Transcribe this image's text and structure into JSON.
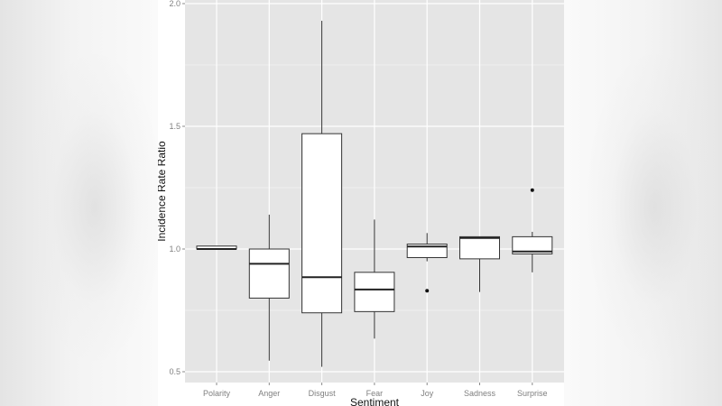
{
  "chart_data": {
    "type": "boxplot",
    "title": "",
    "xlabel": "Sentiment",
    "ylabel": "Incidence Rate Ratio",
    "ylim": [
      0.48,
      2.0
    ],
    "yticks": [
      0.5,
      1.0,
      1.5,
      2.0
    ],
    "ytick_labels": [
      "0.5",
      "1.0",
      "1.5",
      "2.0"
    ],
    "grid": true,
    "categories": [
      "Polarity",
      "Anger",
      "Disgust",
      "Fear",
      "Joy",
      "Sadness",
      "Surprise"
    ],
    "boxes": [
      {
        "name": "Polarity",
        "whisker_low": 1.0,
        "q1": 1.0,
        "median": 1.0,
        "q3": 1.012,
        "whisker_high": 1.012,
        "outliers": []
      },
      {
        "name": "Anger",
        "whisker_low": 0.545,
        "q1": 0.8,
        "median": 0.94,
        "q3": 1.0,
        "whisker_high": 1.14,
        "outliers": []
      },
      {
        "name": "Disgust",
        "whisker_low": 0.52,
        "q1": 0.74,
        "median": 0.885,
        "q3": 1.47,
        "whisker_high": 1.93,
        "outliers": []
      },
      {
        "name": "Fear",
        "whisker_low": 0.635,
        "q1": 0.745,
        "median": 0.835,
        "q3": 0.905,
        "whisker_high": 1.12,
        "outliers": []
      },
      {
        "name": "Joy",
        "whisker_low": 0.95,
        "q1": 0.965,
        "median": 1.01,
        "q3": 1.02,
        "whisker_high": 1.065,
        "outliers": [
          0.83
        ]
      },
      {
        "name": "Sadness",
        "whisker_low": 0.825,
        "q1": 0.96,
        "median": 1.045,
        "q3": 1.05,
        "whisker_high": 1.05,
        "outliers": []
      },
      {
        "name": "Surprise",
        "whisker_low": 0.905,
        "q1": 0.98,
        "median": 0.99,
        "q3": 1.05,
        "whisker_high": 1.07,
        "outliers": [
          1.24
        ]
      }
    ],
    "colors": {
      "panel_background": "#e5e5e5",
      "gridline": "#ffffff",
      "box_fill": "#ffffff",
      "box_stroke": "#333333",
      "tick_text": "#7f7f7f",
      "axis_title": "#111111"
    }
  }
}
